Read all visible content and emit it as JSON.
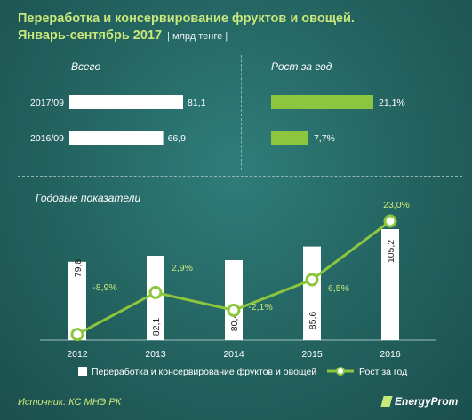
{
  "header": {
    "title_line1": "Переработка и консервирование фруктов и овощей.",
    "title_line2": "Январь-сентябрь 2017",
    "unit": "| млрд тенге |"
  },
  "colors": {
    "accent": "#8cc63f",
    "bar_white": "#ffffff",
    "label_green": "#c9e87a"
  },
  "chart_data": [
    {
      "type": "bar",
      "orientation": "horizontal",
      "title": "Всего",
      "categories": [
        "2017/09",
        "2016/09"
      ],
      "values": [
        81.1,
        66.9
      ],
      "value_labels": [
        "81,1",
        "66,9"
      ]
    },
    {
      "type": "bar",
      "orientation": "horizontal",
      "title": "Рост за год",
      "categories": [
        "2017/09",
        "2016/09"
      ],
      "values": [
        21.1,
        7.7
      ],
      "value_labels": [
        "21,1%",
        "7,7%"
      ]
    },
    {
      "type": "bar+line",
      "title": "Годовые показатели",
      "categories": [
        "2012",
        "2013",
        "2014",
        "2015",
        "2016"
      ],
      "series": [
        {
          "name": "Переработка и консервирование фруктов и овощей",
          "type": "bar",
          "values": [
            79.8,
            82.1,
            80.4,
            85.6,
            105.2
          ],
          "value_labels": [
            "79,8",
            "82,1",
            "80,4",
            "85,6",
            "105,2"
          ]
        },
        {
          "name": "Рост за год",
          "type": "line",
          "values": [
            -8.9,
            2.9,
            -2.1,
            6.5,
            23.0
          ],
          "value_labels": [
            "-8,9%",
            "2,9%",
            "-2,1%",
            "6,5%",
            "23,0%"
          ]
        }
      ],
      "legend": "bottom"
    }
  ],
  "footer": {
    "source": "Источник: КС МНЭ РК",
    "logo": "EnergyProm"
  }
}
